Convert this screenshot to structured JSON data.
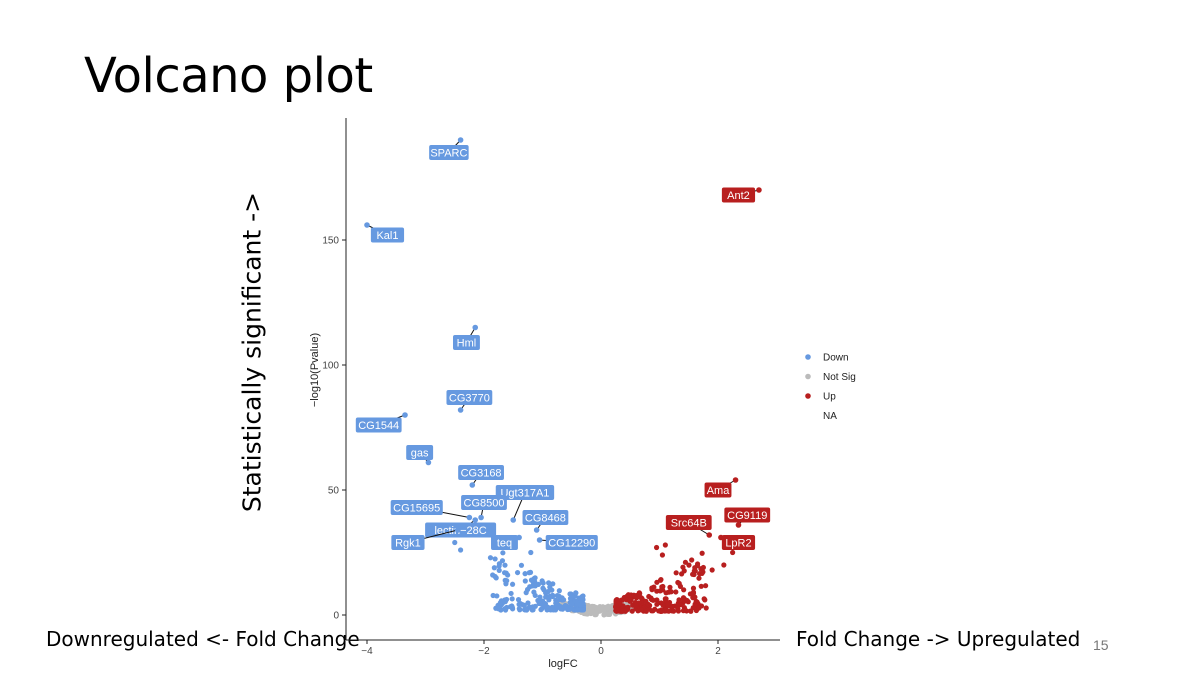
{
  "slide": {
    "title": "Volcano plot",
    "y_side_label": "Statistically significant ->",
    "left_bottom_label": "Downregulated <- Fold Change",
    "right_bottom_label": "Fold Change -> Upregulated",
    "page_number": "15"
  },
  "chart_data": {
    "type": "scatter",
    "xlabel": "logFC",
    "ylabel": "−log10(Pvalue)",
    "xlim": [
      -4.2,
      2.9
    ],
    "ylim": [
      -10,
      200
    ],
    "x_ticks": [
      -4,
      -2,
      0,
      2
    ],
    "x_tick_labels": [
      "−4",
      "−2",
      "0",
      "2"
    ],
    "y_ticks": [
      0,
      50,
      100,
      150
    ],
    "y_tick_labels": [
      "0",
      "50",
      "100",
      "150"
    ],
    "grid": false,
    "legend_position": "right",
    "colors": {
      "Down": "#6699e0",
      "Not Sig": "#bbbbbb",
      "Up": "#b81f1f",
      "NA": "#ffffff"
    },
    "legend": [
      "Down",
      "Not Sig",
      "Up",
      "NA"
    ],
    "labeled_points": [
      {
        "label": "SPARC",
        "x": -2.4,
        "y": 190,
        "group": "Down",
        "lx": -2.6,
        "ly": 185
      },
      {
        "label": "Kal1",
        "x": -4.0,
        "y": 156,
        "group": "Down",
        "lx": -3.65,
        "ly": 152
      },
      {
        "label": "Hml",
        "x": -2.15,
        "y": 115,
        "group": "Down",
        "lx": -2.3,
        "ly": 109
      },
      {
        "label": "CG3770",
        "x": -2.4,
        "y": 82,
        "group": "Down",
        "lx": -2.25,
        "ly": 87
      },
      {
        "label": "CG1544",
        "x": -3.35,
        "y": 80,
        "group": "Down",
        "lx": -3.8,
        "ly": 76
      },
      {
        "label": "gas",
        "x": -2.95,
        "y": 61,
        "group": "Down",
        "lx": -3.1,
        "ly": 65
      },
      {
        "label": "CG3168",
        "x": -2.2,
        "y": 52,
        "group": "Down",
        "lx": -2.05,
        "ly": 57
      },
      {
        "label": "Ugt317A1",
        "x": -1.5,
        "y": 38,
        "group": "Down",
        "lx": -1.3,
        "ly": 49
      },
      {
        "label": "CG8500",
        "x": -2.05,
        "y": 39,
        "group": "Down",
        "lx": -2.0,
        "ly": 45
      },
      {
        "label": "CG15695",
        "x": -2.25,
        "y": 39,
        "group": "Down",
        "lx": -3.15,
        "ly": 43
      },
      {
        "label": "CG8468",
        "x": -1.1,
        "y": 34,
        "group": "Down",
        "lx": -0.95,
        "ly": 39
      },
      {
        "label": "lectin−28C",
        "x": -2.15,
        "y": 38,
        "group": "Down",
        "lx": -2.4,
        "ly": 34
      },
      {
        "label": "teq",
        "x": -1.4,
        "y": 31,
        "group": "Down",
        "lx": -1.65,
        "ly": 29
      },
      {
        "label": "CG12290",
        "x": -1.05,
        "y": 30,
        "group": "Down",
        "lx": -0.5,
        "ly": 29
      },
      {
        "label": "Rgk1",
        "x": -2.45,
        "y": 34,
        "group": "Down",
        "lx": -3.3,
        "ly": 29
      },
      {
        "label": "Ant2",
        "x": 2.7,
        "y": 170,
        "group": "Up",
        "lx": 2.35,
        "ly": 168
      },
      {
        "label": "Ama",
        "x": 2.3,
        "y": 54,
        "group": "Up",
        "lx": 2.0,
        "ly": 50
      },
      {
        "label": "CG9119",
        "x": 2.35,
        "y": 36,
        "group": "Up",
        "lx": 2.5,
        "ly": 40
      },
      {
        "label": "Src64B",
        "x": 1.85,
        "y": 32,
        "group": "Up",
        "lx": 1.5,
        "ly": 37
      },
      {
        "label": "LpR2",
        "x": 2.05,
        "y": 31,
        "group": "Up",
        "lx": 2.35,
        "ly": 29
      }
    ],
    "extra_points": [
      {
        "x": -2.5,
        "y": 29,
        "group": "Down"
      },
      {
        "x": -2.4,
        "y": 26,
        "group": "Down"
      },
      {
        "x": -1.6,
        "y": 28,
        "group": "Down"
      },
      {
        "x": -1.2,
        "y": 25,
        "group": "Down"
      },
      {
        "x": 1.55,
        "y": 22,
        "group": "Up"
      },
      {
        "x": 1.75,
        "y": 19,
        "group": "Up"
      },
      {
        "x": 2.1,
        "y": 20,
        "group": "Up"
      },
      {
        "x": 2.25,
        "y": 25,
        "group": "Up"
      },
      {
        "x": 1.9,
        "y": 18,
        "group": "Up"
      },
      {
        "x": 1.05,
        "y": 24,
        "group": "Up"
      },
      {
        "x": 0.95,
        "y": 27,
        "group": "Up"
      },
      {
        "x": 1.1,
        "y": 28,
        "group": "Up"
      }
    ]
  }
}
